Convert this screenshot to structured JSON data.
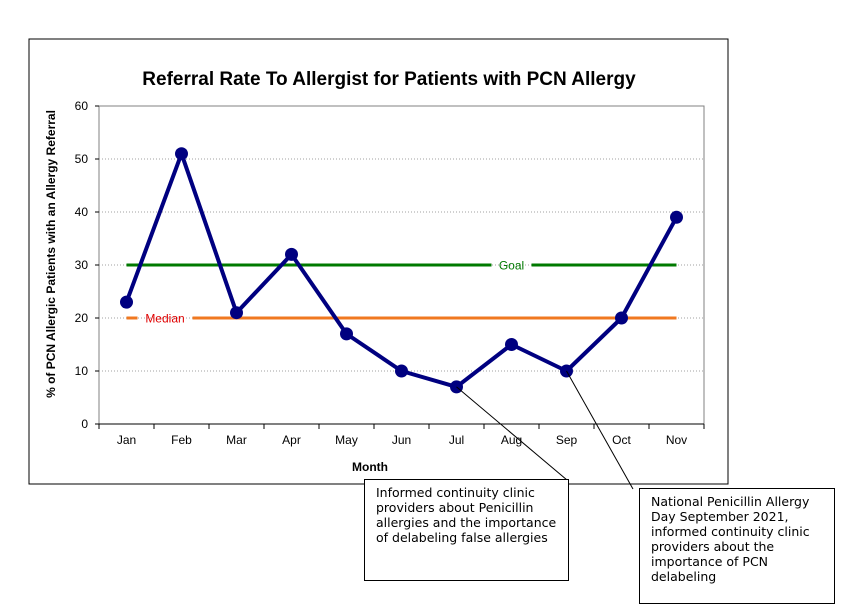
{
  "chart_data": {
    "type": "line",
    "title": "Referral Rate To Allergist for Patients with PCN Allergy",
    "xlabel": "Month",
    "ylabel": "% of PCN Allergic Patients with an Allergy Referral",
    "categories": [
      "Jan",
      "Feb",
      "Mar",
      "Apr",
      "May",
      "Jun",
      "Jul",
      "Aug",
      "Sep",
      "Oct",
      "Nov"
    ],
    "ylim": [
      0,
      60
    ],
    "yticks": [
      0,
      10,
      20,
      30,
      40,
      50,
      60
    ],
    "grid": true,
    "series": [
      {
        "values": [
          23,
          51,
          21,
          32,
          17,
          10,
          7,
          15,
          10,
          20,
          39
        ],
        "color": "#000080"
      }
    ],
    "reference_lines": [
      {
        "label": "Goal",
        "value": 30,
        "color": "#007a00",
        "label_color": "#007a00"
      },
      {
        "label": "Median",
        "value": 20,
        "color": "#f07820",
        "label_color": "#e00000"
      }
    ]
  },
  "annotations": [
    {
      "text": "Informed continuity clinic providers about Penicillin allergies and the importance of delabeling false allergies",
      "points_to": "Jul"
    },
    {
      "text": "National Penicillin Allergy Day September 2021, informed continuity clinic providers about the importance of PCN delabeling",
      "points_to": "Sep"
    }
  ]
}
